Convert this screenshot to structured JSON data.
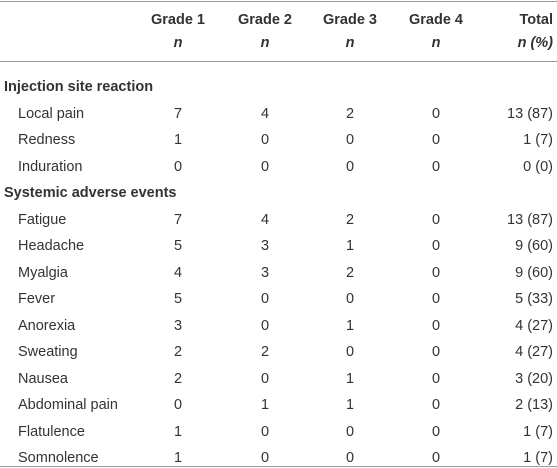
{
  "table": {
    "columns": [
      {
        "title": "Grade 1",
        "subtitle": "n"
      },
      {
        "title": "Grade 2",
        "subtitle": "n"
      },
      {
        "title": "Grade 3",
        "subtitle": "n"
      },
      {
        "title": "Grade 4",
        "subtitle": "n"
      },
      {
        "title": "Total",
        "subtitle": "n (%)"
      }
    ],
    "sections": [
      {
        "title": "Injection site reaction",
        "rows": [
          {
            "label": "Local pain",
            "cells": [
              7,
              4,
              2,
              0,
              "13 (87)"
            ]
          },
          {
            "label": "Redness",
            "cells": [
              1,
              0,
              0,
              0,
              "1 (7)"
            ]
          },
          {
            "label": "Induration",
            "cells": [
              0,
              0,
              0,
              0,
              "0 (0)"
            ]
          }
        ]
      },
      {
        "title": "Systemic adverse events",
        "rows": [
          {
            "label": "Fatigue",
            "cells": [
              7,
              4,
              2,
              0,
              "13 (87)"
            ]
          },
          {
            "label": "Headache",
            "cells": [
              5,
              3,
              1,
              0,
              "9 (60)"
            ]
          },
          {
            "label": "Myalgia",
            "cells": [
              4,
              3,
              2,
              0,
              "9 (60)"
            ]
          },
          {
            "label": "Fever",
            "cells": [
              5,
              0,
              0,
              0,
              "5 (33)"
            ]
          },
          {
            "label": "Anorexia",
            "cells": [
              3,
              0,
              1,
              0,
              "4 (27)"
            ]
          },
          {
            "label": "Sweating",
            "cells": [
              2,
              2,
              0,
              0,
              "4 (27)"
            ]
          },
          {
            "label": "Nausea",
            "cells": [
              2,
              0,
              1,
              0,
              "3 (20)"
            ]
          },
          {
            "label": "Abdominal pain",
            "cells": [
              0,
              1,
              1,
              0,
              "2 (13)"
            ]
          },
          {
            "label": "Flatulence",
            "cells": [
              1,
              0,
              0,
              0,
              "1 (7)"
            ]
          },
          {
            "label": "Somnolence",
            "cells": [
              1,
              0,
              0,
              0,
              "1 (7)"
            ]
          }
        ]
      }
    ]
  }
}
